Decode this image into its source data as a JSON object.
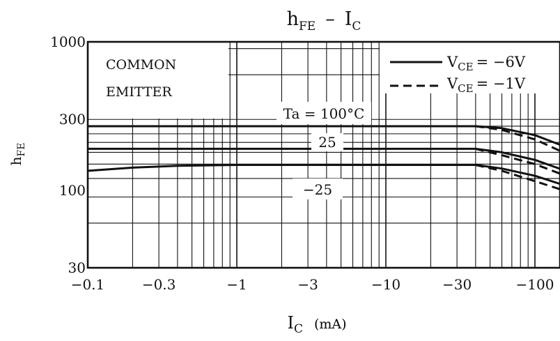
{
  "chart_data": {
    "type": "line",
    "title": {
      "main": "h",
      "main_sub": "FE",
      "dash": "–",
      "right": "I",
      "right_sub": "C"
    },
    "ylabel": {
      "main": "h",
      "sub": "FE"
    },
    "xlabel": {
      "main": "I",
      "sub": "C",
      "unit": "(mA)"
    },
    "x_scale": "log",
    "y_scale": "log",
    "xlim": [
      -0.1,
      -300
    ],
    "ylim": [
      30,
      1000
    ],
    "x_ticks": [
      {
        "value": -0.1,
        "label": "−0.1"
      },
      {
        "value": -0.3,
        "label": "−0.3"
      },
      {
        "value": -1,
        "label": "−1"
      },
      {
        "value": -3,
        "label": "−3"
      },
      {
        "value": -10,
        "label": "−10"
      },
      {
        "value": -30,
        "label": "−30"
      },
      {
        "value": -100,
        "label": "−100"
      }
    ],
    "y_ticks": [
      {
        "value": 30,
        "label": "30"
      },
      {
        "value": 100,
        "label": "100"
      },
      {
        "value": 300,
        "label": "300"
      },
      {
        "value": 1000,
        "label": "1000"
      }
    ],
    "grid": true,
    "annotation_box": [
      "COMMON",
      "EMITTER"
    ],
    "legend": [
      {
        "label_main": "V",
        "label_sub": "CE",
        "label_value": "= −6V",
        "style": "solid"
      },
      {
        "label_main": "V",
        "label_sub": "CE",
        "label_value": "= −1V",
        "style": "dashed"
      }
    ],
    "series": [
      {
        "name": "Ta = 100°C",
        "vce": "-6V",
        "style": "solid",
        "x": [
          -0.1,
          -1,
          -10,
          -40,
          -60,
          -100,
          -200,
          -300
        ],
        "y": [
          270,
          270,
          270,
          270,
          262,
          235,
          180,
          150
        ]
      },
      {
        "name": "Ta = 100°C",
        "vce": "-1V",
        "style": "dashed",
        "x": [
          -40,
          -60,
          -100,
          -200,
          -300
        ],
        "y": [
          270,
          255,
          220,
          160,
          128
        ]
      },
      {
        "name": "25",
        "vce": "-6V",
        "style": "solid",
        "x": [
          -0.1,
          -1,
          -10,
          -40,
          -60,
          -100,
          -200,
          -300
        ],
        "y": [
          190,
          190,
          190,
          190,
          180,
          160,
          125,
          105
        ]
      },
      {
        "name": "25",
        "vce": "-1V",
        "style": "dashed",
        "x": [
          -40,
          -60,
          -100,
          -200,
          -300
        ],
        "y": [
          190,
          172,
          150,
          115,
          95
        ]
      },
      {
        "name": "−25",
        "vce": "-6V",
        "style": "solid",
        "x": [
          -0.1,
          -0.2,
          -0.4,
          -1,
          -10,
          -40,
          -60,
          -100,
          -200,
          -300
        ],
        "y": [
          135,
          142,
          146,
          148,
          148,
          148,
          140,
          125,
          100,
          88
        ]
      },
      {
        "name": "−25",
        "vce": "-1V",
        "style": "dashed",
        "x": [
          -40,
          -60,
          -100,
          -200,
          -300
        ],
        "y": [
          148,
          135,
          115,
          92,
          78
        ]
      }
    ],
    "curve_labels": [
      {
        "text": "Ta = 100°C"
      },
      {
        "text": "25"
      },
      {
        "text": "−25"
      }
    ]
  }
}
